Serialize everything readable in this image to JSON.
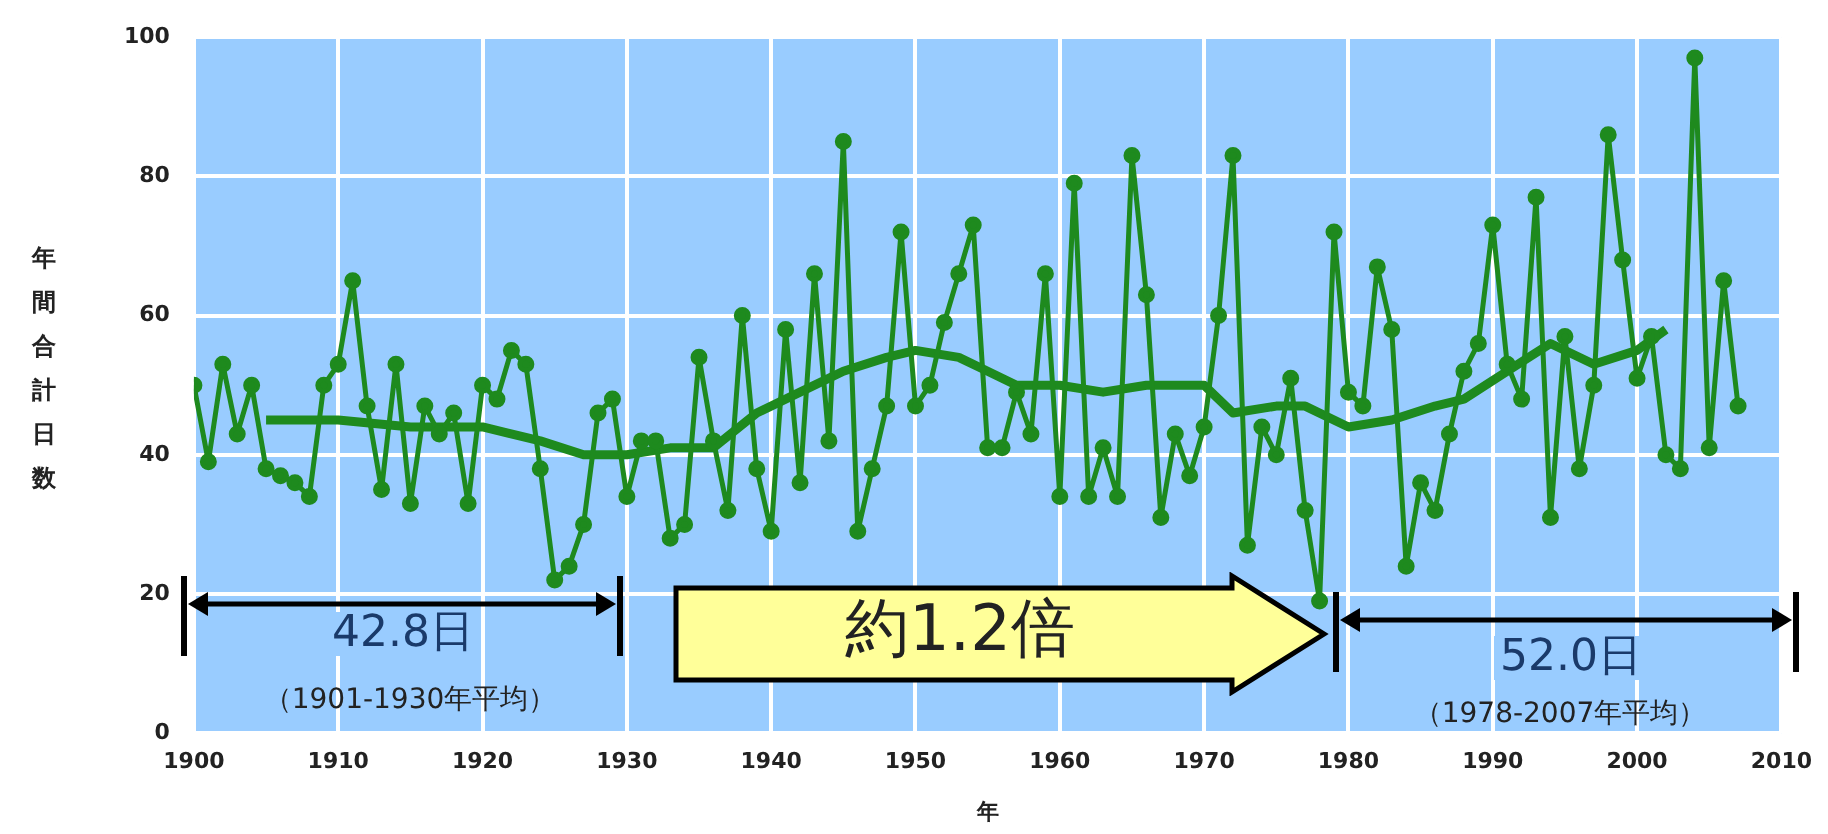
{
  "chart_data": {
    "type": "line",
    "ylabel": "年間合計日数",
    "xlabel": "年",
    "x": [
      1900,
      1901,
      1902,
      1903,
      1904,
      1905,
      1906,
      1907,
      1908,
      1909,
      1910,
      1911,
      1912,
      1913,
      1914,
      1915,
      1916,
      1917,
      1918,
      1919,
      1920,
      1921,
      1922,
      1923,
      1924,
      1925,
      1926,
      1927,
      1928,
      1929,
      1930,
      1931,
      1932,
      1933,
      1934,
      1935,
      1936,
      1937,
      1938,
      1939,
      1940,
      1941,
      1942,
      1943,
      1944,
      1945,
      1946,
      1947,
      1948,
      1949,
      1950,
      1951,
      1952,
      1953,
      1954,
      1955,
      1956,
      1957,
      1958,
      1959,
      1960,
      1961,
      1962,
      1963,
      1964,
      1965,
      1966,
      1967,
      1968,
      1969,
      1970,
      1971,
      1972,
      1973,
      1974,
      1975,
      1976,
      1977,
      1978,
      1979,
      1980,
      1981,
      1982,
      1983,
      1984,
      1985,
      1986,
      1987,
      1988,
      1989,
      1990,
      1991,
      1992,
      1993,
      1994,
      1995,
      1996,
      1997,
      1998,
      1999,
      2000,
      2001,
      2002,
      2003,
      2004,
      2005,
      2006,
      2007
    ],
    "series": [
      {
        "color": "#1e8a1e",
        "marker": "circle",
        "values": [
          50,
          39,
          53,
          43,
          50,
          38,
          37,
          36,
          34,
          50,
          53,
          65,
          47,
          35,
          53,
          33,
          47,
          43,
          46,
          33,
          50,
          48,
          55,
          53,
          38,
          22,
          24,
          30,
          46,
          48,
          34,
          42,
          42,
          28,
          30,
          54,
          42,
          32,
          60,
          38,
          29,
          58,
          36,
          66,
          42,
          85,
          29,
          38,
          47,
          72,
          47,
          50,
          59,
          66,
          73,
          41,
          41,
          49,
          43,
          66,
          34,
          79,
          34,
          41,
          34,
          83,
          63,
          31,
          43,
          37,
          44,
          60,
          83,
          27,
          44,
          40,
          51,
          32,
          19,
          72,
          49,
          47,
          67,
          58,
          24,
          36,
          32,
          43,
          52,
          56,
          73,
          53,
          48,
          77,
          31,
          57,
          38,
          50,
          86,
          68,
          51,
          57,
          40,
          38,
          97,
          41,
          65,
          47
        ]
      },
      {
        "color": "#1e8a1e",
        "marker": "none",
        "x": [
          1905,
          1910,
          1915,
          1920,
          1924,
          1927,
          1930,
          1933,
          1936,
          1939,
          1942,
          1945,
          1948,
          1950,
          1953,
          1955,
          1957,
          1960,
          1963,
          1966,
          1970,
          1972,
          1975,
          1977,
          1980,
          1983,
          1986,
          1988,
          1991,
          1994,
          1997,
          2000,
          2002
        ],
        "values": [
          45,
          45,
          44,
          44,
          42,
          40,
          40,
          41,
          41,
          46,
          49,
          52,
          54,
          55,
          54,
          52,
          50,
          50,
          49,
          50,
          50,
          46,
          47,
          47,
          44,
          45,
          47,
          48,
          52,
          56,
          53,
          55,
          58
        ]
      }
    ],
    "xlim": [
      1900,
      2010
    ],
    "xticks": [
      1900,
      1910,
      1920,
      1930,
      1940,
      1950,
      1960,
      1970,
      1980,
      1990,
      2000,
      2010
    ],
    "ylim": [
      0,
      100
    ],
    "yticks": [
      0,
      20,
      40,
      60,
      80,
      100
    ],
    "grid": true,
    "legend": false,
    "annotations": [
      "42.8日",
      "（1901-1930年平均）",
      "約1.2倍",
      "52.0日",
      "（1978-2007年平均）"
    ]
  }
}
